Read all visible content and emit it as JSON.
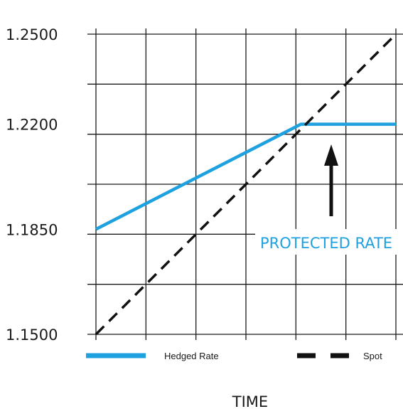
{
  "chart_data": {
    "type": "line",
    "xlabel": "TIME",
    "ylabel": "",
    "ylim": [
      1.15,
      1.25
    ],
    "yticks": [
      1.25,
      1.22,
      1.185,
      1.15
    ],
    "ytick_labels": [
      "1.2500",
      "1.2200",
      "1.1850",
      "1.1500"
    ],
    "xlim": [
      0,
      6
    ],
    "grid": true,
    "legend_position": "bottom",
    "series": [
      {
        "name": "Hedged Rate",
        "style": "solid",
        "color": "#1fa1e0",
        "x": [
          0,
          4.1,
          6
        ],
        "y": [
          1.185,
          1.22,
          1.22
        ]
      },
      {
        "name": "Spot",
        "style": "dashed",
        "color": "#111111",
        "x": [
          0,
          6
        ],
        "y": [
          1.15,
          1.25
        ]
      }
    ],
    "annotations": [
      {
        "text": "PROTECTED RATE",
        "color": "#1fa1e0"
      }
    ]
  }
}
